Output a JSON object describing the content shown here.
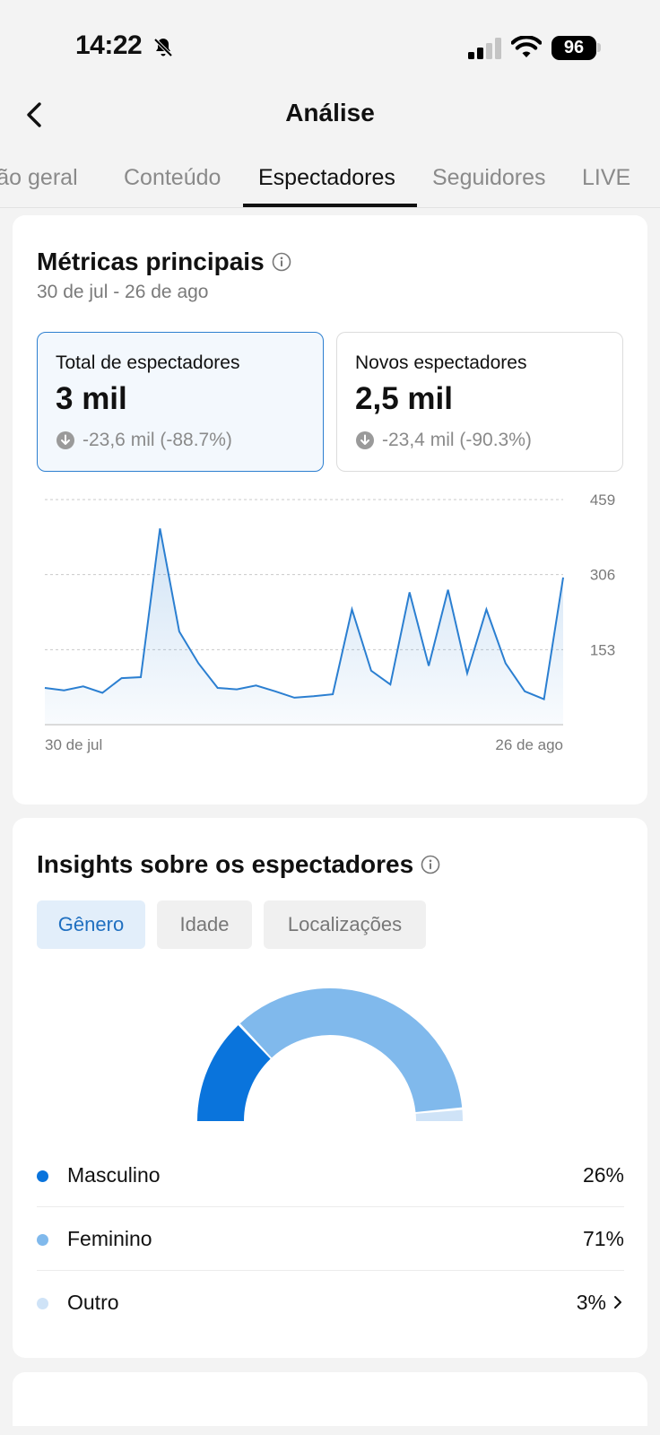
{
  "status_bar": {
    "time": "14:22",
    "battery": "96"
  },
  "header": {
    "title": "Análise"
  },
  "tabs": [
    {
      "label": "Visão geral"
    },
    {
      "label": "Conteúdo"
    },
    {
      "label": "Espectadores"
    },
    {
      "label": "Seguidores"
    },
    {
      "label": "LIVE"
    }
  ],
  "metrics_card": {
    "title": "Métricas principais",
    "date_range": "30 de jul - 26 de ago",
    "metrics": [
      {
        "label": "Total de espectadores",
        "value": "3 mil",
        "change": "-23,6 mil (-88.7%)"
      },
      {
        "label": "Novos espectadores",
        "value": "2,5 mil",
        "change": "-23,4 mil (-90.3%)"
      }
    ]
  },
  "chart_data": {
    "type": "area",
    "x_start_label": "30 de jul",
    "x_end_label": "26 de ago",
    "ylim": [
      0,
      459
    ],
    "y_ticks": [
      153,
      306,
      459
    ],
    "grid": true,
    "line_color": "#2b7fd1",
    "values": [
      75,
      70,
      78,
      65,
      95,
      97,
      400,
      190,
      125,
      75,
      72,
      80,
      68,
      55,
      58,
      62,
      235,
      110,
      82,
      270,
      120,
      275,
      105,
      235,
      125,
      68,
      52,
      300
    ]
  },
  "insights_card": {
    "title": "Insights sobre os espectadores",
    "segments": [
      {
        "label": "Gênero"
      },
      {
        "label": "Idade"
      },
      {
        "label": "Localizações"
      }
    ],
    "gender_chart": {
      "type": "pie",
      "slices": [
        {
          "label": "Masculino",
          "value": 26,
          "display": "26%",
          "color": "#0a74dc"
        },
        {
          "label": "Feminino",
          "value": 71,
          "display": "71%",
          "color": "#80b9ec"
        },
        {
          "label": "Outro",
          "value": 3,
          "display": "3%",
          "color": "#cfe3f7"
        }
      ]
    }
  }
}
